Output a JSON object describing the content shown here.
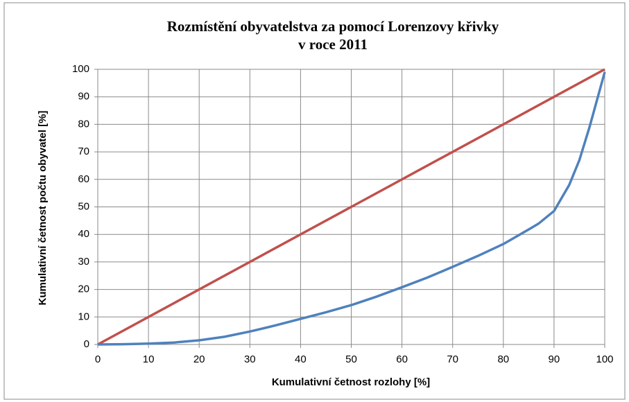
{
  "chart_data": {
    "type": "line",
    "title": [
      "Rozmístění obyvatelstva za pomocí Lorenzovy křivky",
      "v roce 2011"
    ],
    "x_label": "Kumulativní četnost rozlohy [%]",
    "y_label": "Kumulativní četnost počtu obyvatel [%]",
    "series": [
      {
        "color": "#c0504d",
        "x": [
          0,
          100
        ],
        "values": [
          0,
          100
        ]
      },
      {
        "color": "#4f81bd",
        "x": [
          0,
          5,
          10,
          15,
          20,
          25,
          30,
          35,
          40,
          45,
          50,
          55,
          60,
          65,
          70,
          75,
          80,
          85,
          87,
          90,
          93,
          95,
          97,
          100
        ],
        "values": [
          0,
          0.1,
          0.3,
          0.7,
          1.5,
          2.8,
          4.7,
          6.9,
          9.3,
          11.7,
          14.3,
          17.4,
          20.8,
          24.3,
          28.2,
          32.2,
          36.5,
          41.8,
          44,
          48.5,
          58,
          67,
          79,
          99
        ]
      }
    ],
    "xlim": [
      0,
      100
    ],
    "xticks": [
      0,
      10,
      20,
      30,
      40,
      50,
      60,
      70,
      80,
      90,
      100
    ],
    "ylim": [
      0,
      100
    ],
    "yticks": [
      0,
      10,
      20,
      30,
      40,
      50,
      60,
      70,
      80,
      90,
      100
    ],
    "grid": true
  }
}
